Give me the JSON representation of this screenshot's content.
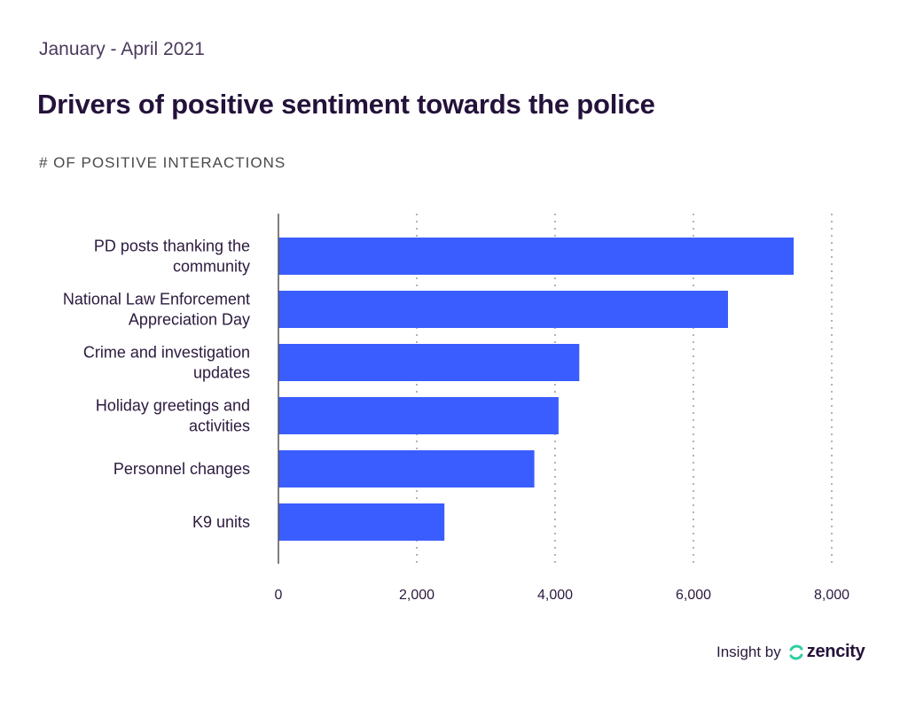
{
  "header": {
    "date_range": "January - April 2021",
    "title": "Drivers of positive sentiment towards the police",
    "axis_caption": "# OF POSITIVE INTERACTIONS"
  },
  "footer": {
    "insight_by": "Insight by",
    "brand": "zencity",
    "brand_color": "#2ecfa0"
  },
  "colors": {
    "bar": "#3a5dff",
    "grid": "#9a9a9a",
    "axis": "#555555"
  },
  "chart_data": {
    "type": "bar",
    "orientation": "horizontal",
    "title": "Drivers of positive sentiment towards the police",
    "subtitle": "January - April 2021",
    "xlabel": "# OF POSITIVE INTERACTIONS",
    "ylabel": "",
    "categories": [
      [
        "PD posts thanking the",
        "community"
      ],
      [
        "National Law Enforcement",
        "Appreciation Day"
      ],
      [
        "Crime and investigation",
        "updates"
      ],
      [
        "Holiday greetings and",
        "activities"
      ],
      [
        "Personnel changes"
      ],
      [
        "K9 units"
      ]
    ],
    "values": [
      7450,
      6500,
      4350,
      4050,
      3700,
      2400
    ],
    "xlim": [
      0,
      8000
    ],
    "ticks": [
      0,
      2000,
      4000,
      6000,
      8000
    ],
    "tick_labels": [
      "0",
      "2,000",
      "4,000",
      "6,000",
      "8,000"
    ],
    "grid": true
  }
}
